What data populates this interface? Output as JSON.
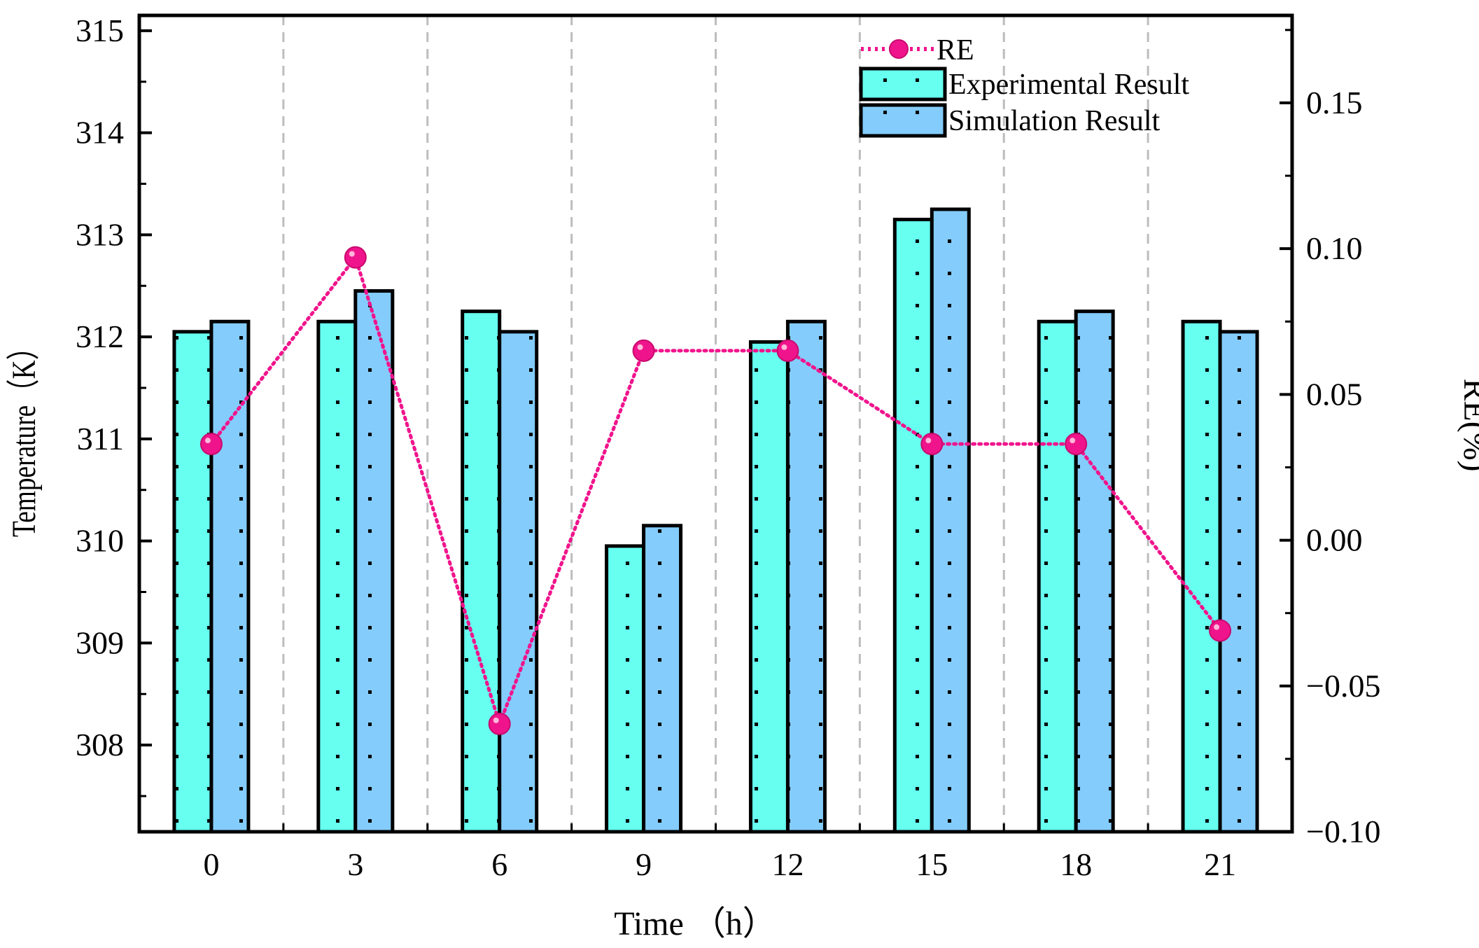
{
  "chart_data": {
    "type": "bar",
    "categories": [
      "0",
      "3",
      "6",
      "9",
      "12",
      "15",
      "18",
      "21"
    ],
    "series": [
      {
        "name": "Experimental Result",
        "axis": "left",
        "color": "#66FFF0",
        "values": [
          312.05,
          312.15,
          312.25,
          309.95,
          311.95,
          313.15,
          312.15,
          312.15
        ]
      },
      {
        "name": "Simulation Result",
        "axis": "left",
        "color": "#84CCFB",
        "values": [
          312.15,
          312.45,
          312.05,
          310.15,
          312.15,
          313.25,
          312.25,
          312.05
        ]
      }
    ],
    "line_series": {
      "name": "RE",
      "type": "line",
      "axis": "right",
      "color": "#F0148C",
      "values": [
        0.033,
        0.097,
        -0.063,
        0.065,
        0.065,
        0.033,
        0.033,
        -0.031
      ]
    },
    "xlabel": "Time （h）",
    "ylabel_left": "Temperature（K）",
    "ylabel_right": "RE(%)",
    "ylim_left": [
      307.15,
      315.15
    ],
    "ylim_right": [
      -0.1,
      0.18
    ],
    "yticks_left": [
      308,
      309,
      310,
      311,
      312,
      313,
      314,
      315
    ],
    "yticks_right": [
      "0.15",
      "0.10",
      "0.05",
      "0.00",
      "−0.05",
      "−0.10"
    ],
    "yticks_right_values": [
      0.15,
      0.1,
      0.05,
      0.0,
      -0.05,
      -0.1
    ],
    "grid": "vertical dashed separators",
    "legend": {
      "position": "top-right",
      "entries": [
        "RE",
        "Experimental Result",
        "Simulation Result"
      ]
    }
  }
}
